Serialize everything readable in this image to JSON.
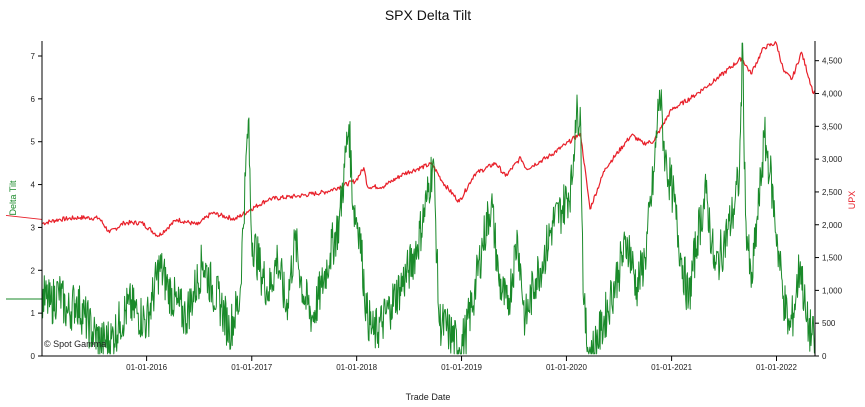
{
  "chart_data": {
    "type": "line",
    "title": "SPX Delta Tilt",
    "xlabel": "Trade Date",
    "ylabel_left": "Delta Tilt",
    "ylabel_right": "UPX",
    "watermark": "© Spot Gamma",
    "x_range": [
      "2015-01-02",
      "2022-05-15"
    ],
    "x_ticks": [
      "01-01-2016",
      "01-01-2017",
      "01-01-2018",
      "01-01-2019",
      "01-01-2020",
      "01-01-2021",
      "01-01-2022"
    ],
    "y_left": {
      "range": [
        0,
        7.35
      ],
      "ticks": [
        0,
        1,
        2,
        3,
        4,
        5,
        6,
        7
      ],
      "color": "#1a8a2a"
    },
    "y_right": {
      "range": [
        0,
        4800
      ],
      "ticks": [
        0,
        500,
        1000,
        1500,
        2000,
        2500,
        3000,
        3500,
        4000,
        4500
      ],
      "tick_labels": [
        "0",
        "500",
        "1,000",
        "1,500",
        "2,000",
        "2,500",
        "3,000",
        "3,500",
        "4,000",
        "4,500"
      ],
      "color": "#e8202a"
    },
    "grid": false,
    "series": [
      {
        "name": "UPX",
        "axis": "right",
        "color": "#e8202a",
        "points": [
          [
            "2015-01-02",
            2020
          ],
          [
            "2015-03-01",
            2080
          ],
          [
            "2015-05-15",
            2110
          ],
          [
            "2015-07-20",
            2100
          ],
          [
            "2015-08-25",
            1880
          ],
          [
            "2015-10-15",
            2030
          ],
          [
            "2015-12-15",
            2030
          ],
          [
            "2016-02-11",
            1830
          ],
          [
            "2016-04-15",
            2080
          ],
          [
            "2016-06-27",
            2000
          ],
          [
            "2016-08-15",
            2180
          ],
          [
            "2016-11-04",
            2085
          ],
          [
            "2016-12-30",
            2240
          ],
          [
            "2017-03-01",
            2390
          ],
          [
            "2017-06-15",
            2440
          ],
          [
            "2017-09-15",
            2500
          ],
          [
            "2017-12-29",
            2670
          ],
          [
            "2018-01-26",
            2870
          ],
          [
            "2018-02-08",
            2580
          ],
          [
            "2018-04-02",
            2580
          ],
          [
            "2018-06-15",
            2780
          ],
          [
            "2018-09-20",
            2930
          ],
          [
            "2018-10-29",
            2640
          ],
          [
            "2018-12-24",
            2350
          ],
          [
            "2019-02-15",
            2770
          ],
          [
            "2019-04-30",
            2940
          ],
          [
            "2019-06-03",
            2740
          ],
          [
            "2019-07-26",
            3020
          ],
          [
            "2019-08-15",
            2850
          ],
          [
            "2019-10-31",
            3040
          ],
          [
            "2019-12-31",
            3230
          ],
          [
            "2020-02-19",
            3390
          ],
          [
            "2020-03-23",
            2240
          ],
          [
            "2020-05-15",
            2860
          ],
          [
            "2020-08-15",
            3370
          ],
          [
            "2020-09-23",
            3240
          ],
          [
            "2020-10-30",
            3270
          ],
          [
            "2020-12-31",
            3750
          ],
          [
            "2021-03-15",
            3950
          ],
          [
            "2021-06-15",
            4250
          ],
          [
            "2021-09-02",
            4540
          ],
          [
            "2021-10-04",
            4300
          ],
          [
            "2021-11-18",
            4700
          ],
          [
            "2021-12-31",
            4770
          ],
          [
            "2022-01-27",
            4330
          ],
          [
            "2022-02-24",
            4220
          ],
          [
            "2022-03-29",
            4630
          ],
          [
            "2022-05-10",
            4000
          ],
          [
            "2022-05-15",
            4020
          ]
        ]
      },
      {
        "name": "Delta Tilt",
        "axis": "left",
        "color": "#1a8a2a",
        "points": [
          [
            "2015-01-02",
            1.4
          ],
          [
            "2015-02-01",
            1.2
          ],
          [
            "2015-03-01",
            1.5
          ],
          [
            "2015-04-01",
            1.0
          ],
          [
            "2015-05-01",
            1.3
          ],
          [
            "2015-06-01",
            0.9
          ],
          [
            "2015-07-01",
            0.5
          ],
          [
            "2015-08-01",
            0.3
          ],
          [
            "2015-09-01",
            0.4
          ],
          [
            "2015-10-01",
            0.8
          ],
          [
            "2015-11-01",
            1.2
          ],
          [
            "2015-12-01",
            1.0
          ],
          [
            "2016-01-01",
            0.8
          ],
          [
            "2016-01-20",
            1.3
          ],
          [
            "2016-02-15",
            2.1
          ],
          [
            "2016-03-15",
            1.6
          ],
          [
            "2016-04-15",
            1.2
          ],
          [
            "2016-05-15",
            0.9
          ],
          [
            "2016-06-15",
            1.5
          ],
          [
            "2016-07-15",
            2.2
          ],
          [
            "2016-08-15",
            1.6
          ],
          [
            "2016-09-15",
            1.2
          ],
          [
            "2016-10-15",
            0.6
          ],
          [
            "2016-11-20",
            1.3
          ],
          [
            "2016-12-10",
            4.2
          ],
          [
            "2016-12-20",
            5.5
          ],
          [
            "2016-12-31",
            2.8
          ],
          [
            "2017-02-01",
            2.0
          ],
          [
            "2017-03-01",
            1.5
          ],
          [
            "2017-04-01",
            2.3
          ],
          [
            "2017-05-01",
            1.1
          ],
          [
            "2017-06-01",
            2.7
          ],
          [
            "2017-07-01",
            1.4
          ],
          [
            "2017-08-01",
            0.9
          ],
          [
            "2017-09-01",
            1.6
          ],
          [
            "2017-10-01",
            2.4
          ],
          [
            "2017-11-01",
            3.1
          ],
          [
            "2017-11-20",
            4.4
          ],
          [
            "2017-12-05",
            5.4
          ],
          [
            "2017-12-20",
            3.5
          ],
          [
            "2018-01-10",
            3.0
          ],
          [
            "2018-02-05",
            1.0
          ],
          [
            "2018-03-01",
            0.5
          ],
          [
            "2018-04-01",
            0.8
          ],
          [
            "2018-05-01",
            1.2
          ],
          [
            "2018-06-01",
            1.6
          ],
          [
            "2018-07-01",
            2.0
          ],
          [
            "2018-08-01",
            2.6
          ],
          [
            "2018-09-01",
            3.6
          ],
          [
            "2018-09-25",
            4.6
          ],
          [
            "2018-10-15",
            0.8
          ],
          [
            "2018-11-15",
            0.6
          ],
          [
            "2018-12-24",
            0.2
          ],
          [
            "2019-01-15",
            0.5
          ],
          [
            "2019-02-15",
            1.5
          ],
          [
            "2019-03-15",
            2.6
          ],
          [
            "2019-04-15",
            3.6
          ],
          [
            "2019-05-10",
            1.8
          ],
          [
            "2019-06-10",
            1.1
          ],
          [
            "2019-07-15",
            2.8
          ],
          [
            "2019-08-10",
            0.8
          ],
          [
            "2019-09-15",
            1.8
          ],
          [
            "2019-10-15",
            2.3
          ],
          [
            "2019-11-15",
            3.1
          ],
          [
            "2019-12-15",
            3.4
          ],
          [
            "2020-01-20",
            4.0
          ],
          [
            "2020-02-01",
            5.5
          ],
          [
            "2020-02-18",
            5.8
          ],
          [
            "2020-03-01",
            1.2
          ],
          [
            "2020-03-15",
            0.2
          ],
          [
            "2020-04-01",
            0.1
          ],
          [
            "2020-05-01",
            0.6
          ],
          [
            "2020-06-01",
            1.3
          ],
          [
            "2020-07-01",
            2.0
          ],
          [
            "2020-08-01",
            2.7
          ],
          [
            "2020-09-01",
            1.6
          ],
          [
            "2020-10-01",
            2.3
          ],
          [
            "2020-11-01",
            4.3
          ],
          [
            "2020-11-20",
            6.2
          ],
          [
            "2020-12-10",
            4.6
          ],
          [
            "2021-01-05",
            3.8
          ],
          [
            "2021-02-01",
            2.4
          ],
          [
            "2021-03-01",
            1.3
          ],
          [
            "2021-04-01",
            2.8
          ],
          [
            "2021-05-01",
            3.8
          ],
          [
            "2021-06-01",
            2.0
          ],
          [
            "2021-07-01",
            2.6
          ],
          [
            "2021-08-01",
            3.3
          ],
          [
            "2021-08-25",
            4.2
          ],
          [
            "2021-09-05",
            7.3
          ],
          [
            "2021-09-15",
            3.3
          ],
          [
            "2021-10-05",
            1.6
          ],
          [
            "2021-11-01",
            3.6
          ],
          [
            "2021-11-20",
            5.1
          ],
          [
            "2021-12-10",
            4.3
          ],
          [
            "2022-01-05",
            2.6
          ],
          [
            "2022-01-25",
            1.4
          ],
          [
            "2022-02-15",
            0.6
          ],
          [
            "2022-03-01",
            1.0
          ],
          [
            "2022-03-25",
            2.2
          ],
          [
            "2022-04-15",
            0.8
          ],
          [
            "2022-05-15",
            0.3
          ]
        ]
      }
    ]
  }
}
